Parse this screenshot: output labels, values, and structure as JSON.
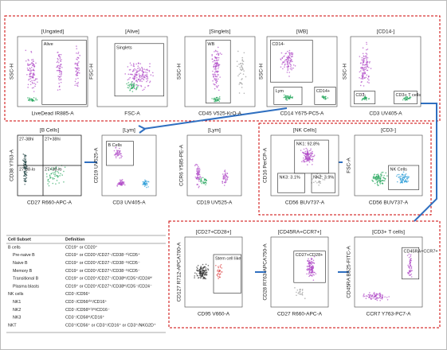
{
  "panels": [
    {
      "title": "[Ungated]",
      "x_label": "LiveDead IR885-A",
      "y_label": "SSC-H",
      "gates": [
        "Alive"
      ]
    },
    {
      "title": "[Alive]",
      "x_label": "FSC-A",
      "y_label": "FSC-H",
      "gates": [
        "Singlets"
      ]
    },
    {
      "title": "[Singlets]",
      "x_label": "CD45 V525-KrO-A",
      "y_label": "SSC-H",
      "gates": [
        "WB"
      ]
    },
    {
      "title": "[WB]",
      "x_label": "CD14 Y675-PC5-A",
      "y_label": "SSC-H",
      "gates": [
        "CD14-",
        "Lym",
        "CD14+"
      ]
    },
    {
      "title": "[CD14-]",
      "x_label": "CD3 UV405-A",
      "y_label": "SSC-H",
      "gates": [
        "CD3-",
        "CD3+ T cells"
      ]
    },
    {
      "title": "[B Cells]",
      "x_label": "CD27 R660-APC-A",
      "y_label": "CD38 Y763-A",
      "gates": [
        "27-38hi",
        "27+38hi",
        "27-38-lo",
        "27+38-lo"
      ]
    },
    {
      "title": "[Lym]",
      "x_label": "CD3 UV405-A",
      "y_label": "CD19 UV525-A",
      "gates": [
        "B Cells"
      ]
    },
    {
      "title": "[Lym]",
      "x_label": "CD19 UV525-A",
      "y_label": "CCR6 Y585-PE-A",
      "gates": []
    },
    {
      "title": "[NK Cells]",
      "x_label": "CD56 BUV737-A",
      "y_label": "CD16 PerCP-A",
      "gates": [
        "NK1: 92.8%",
        "NK3: 3.1%",
        "NK2: 3.9%"
      ]
    },
    {
      "title": "[CD3-]",
      "x_label": "CD56 BUV737-A",
      "y_label": "FSC-A",
      "gates": [
        "NK Cells"
      ]
    },
    {
      "title": "[CD27+CD28+]",
      "x_label": "CD95 V660-A",
      "y_label": "CD127 R712-APCA700-A",
      "gates": [
        "Stem cell like"
      ]
    },
    {
      "title": "[CD45RA+CCR7+]",
      "x_label": "CD27 R660-APC-A",
      "y_label": "CD28 R763-APCA750-A",
      "gates": [
        "CD27+CD28+"
      ]
    },
    {
      "title": "[CD3+ T cells]",
      "x_label": "CCR7 Y763-PC7-A",
      "y_label": "CD45RA B525-FITC-A",
      "gates": [
        "CD45RA+CCR7+"
      ]
    }
  ],
  "table": {
    "headers": [
      "Cell Subset",
      "Definition"
    ],
    "rows": [
      [
        "B cells",
        "CD19⁺ or CD20⁺"
      ],
      [
        "Pre-naive B",
        "CD19⁺ or CD20⁺/CD27⁻/CD38⁻ʰⁱ/CD5⁺"
      ],
      [
        "Naive B",
        "CD19⁺ or CD20⁺/CD27⁻/CD38⁻ˡᵒ/CD5⁻"
      ],
      [
        "Memory B",
        "CD19⁺ or CD20⁺/CD27⁺/CD38⁻ˡᵒ/CD5⁻"
      ],
      [
        "Transitional B",
        "CD19⁺ or CD20⁺/CD27⁻/CD38ʰⁱ/CD5⁺/CD24ʰⁱ"
      ],
      [
        "Plasma blasts",
        "CD19⁺ or CD20⁺/CD27⁺/CD38ʰⁱ/CD5⁻/CD24⁻"
      ],
      [
        "NK cells",
        "CD3⁻/CD56⁺"
      ],
      [
        "NK1",
        "CD3⁻/CD56ᵈⁱᵐ/CD16⁺"
      ],
      [
        "NK2",
        "CD3⁻/CD56ᵇʳⁱᵍʰᵗ/CD16⁻"
      ],
      [
        "NK3",
        "CD3⁻/CD56ʰⁱ/CD16⁺"
      ],
      [
        "NKT",
        "CD3⁺/CD56⁺ or CD3⁺/CD16⁺ or CD3⁺/NKG2D⁺"
      ]
    ]
  }
}
